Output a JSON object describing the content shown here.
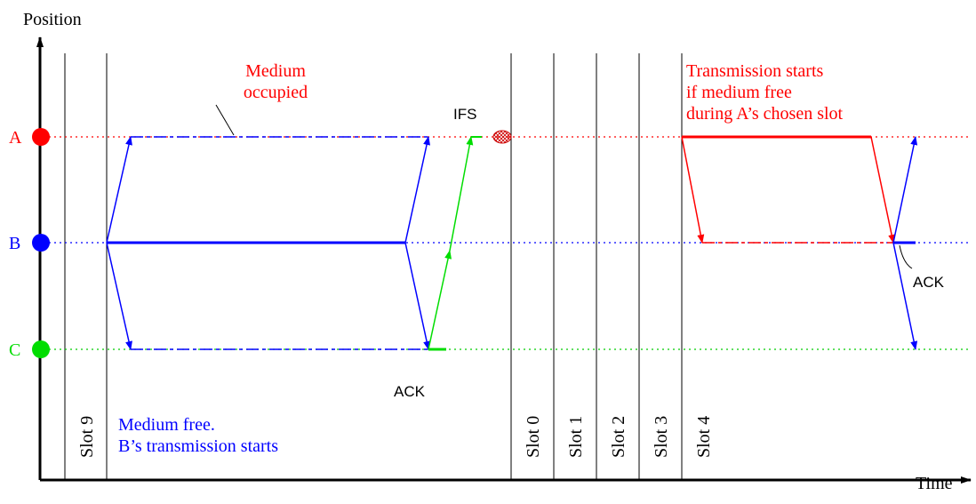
{
  "axes": {
    "y_label": "Position",
    "x_label": "Time"
  },
  "stations": [
    "A",
    "B",
    "C"
  ],
  "annotations": {
    "medium_occupied": [
      "Medium",
      "occupied"
    ],
    "ifs": "IFS",
    "transmission_starts": [
      "Transmission starts",
      "if medium free",
      "during A’s chosen slot"
    ],
    "ack_c": "ACK",
    "ack_b": "ACK",
    "medium_free": [
      "Medium free.",
      "B’s transmission starts"
    ]
  },
  "slots": [
    "Slot 9",
    "Slot 0",
    "Slot 1",
    "Slot 2",
    "Slot 3",
    "Slot 4"
  ]
}
